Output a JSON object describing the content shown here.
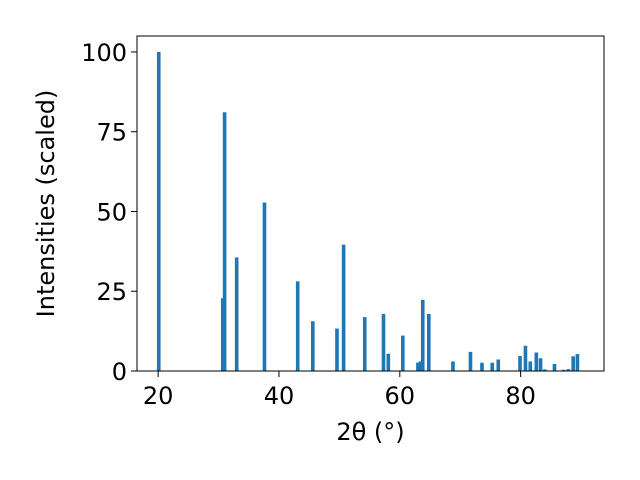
{
  "chart_data": {
    "type": "bar",
    "xlabel": "2θ (°)",
    "ylabel": "Intensities (scaled)",
    "xlim": [
      16.5,
      93.8
    ],
    "ylim": [
      0,
      105
    ],
    "xticks": [
      20,
      40,
      60,
      80
    ],
    "yticks": [
      0,
      25,
      50,
      75,
      100
    ],
    "bar_width": 0.6,
    "bar_color": "#1f77b4",
    "grid": false,
    "x": [
      20.1,
      30.7,
      31.0,
      33.0,
      37.6,
      43.1,
      45.6,
      49.6,
      50.7,
      54.2,
      57.3,
      58.1,
      60.5,
      63.0,
      63.4,
      63.8,
      64.8,
      68.8,
      71.7,
      73.6,
      75.3,
      76.3,
      79.9,
      80.8,
      81.6,
      82.6,
      83.3,
      84.0,
      85.6,
      87.1,
      87.9,
      88.7,
      89.4
    ],
    "values": [
      100,
      22.8,
      81.1,
      35.6,
      52.8,
      28.1,
      15.6,
      13.3,
      39.6,
      16.9,
      17.9,
      5.4,
      11.1,
      2.6,
      3.0,
      22.3,
      17.9,
      3.0,
      6.0,
      2.6,
      2.6,
      3.6,
      4.7,
      7.9,
      3.0,
      5.8,
      4.0,
      0.5,
      2.2,
      0.4,
      0.6,
      4.6,
      5.3
    ]
  }
}
